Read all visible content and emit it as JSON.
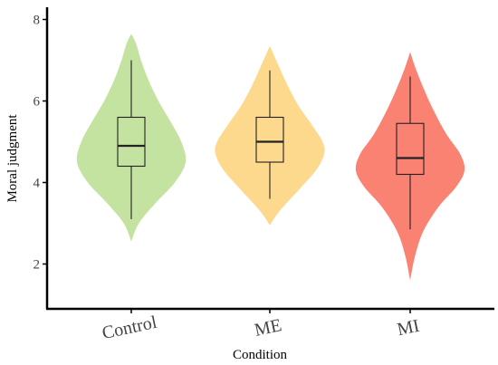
{
  "chart_data": {
    "type": "violin",
    "xlabel": "Condition",
    "ylabel": "Moral judgment",
    "categories": [
      "Control",
      "ME",
      "MI"
    ],
    "ylim": [
      0.9,
      8.3
    ],
    "yticks": [
      2,
      4,
      6,
      8
    ],
    "grid": false,
    "legend": "none",
    "colors": [
      "#c5e3a0",
      "#fdd98e",
      "#fa8273"
    ],
    "box_stroke": "#222222",
    "groups": [
      {
        "name": "Control",
        "min": 3.1,
        "q1": 4.4,
        "median": 4.9,
        "q3": 5.6,
        "max": 7.0,
        "density_y": [
          2.55,
          3.0,
          3.5,
          4.0,
          4.5,
          5.0,
          5.5,
          6.0,
          6.5,
          7.0,
          7.4,
          7.65
        ],
        "density_w": [
          0.0,
          0.14,
          0.45,
          0.8,
          1.0,
          0.92,
          0.72,
          0.5,
          0.32,
          0.18,
          0.09,
          0.0
        ]
      },
      {
        "name": "ME",
        "min": 3.6,
        "q1": 4.5,
        "median": 5.0,
        "q3": 5.6,
        "max": 6.75,
        "density_y": [
          2.95,
          3.3,
          3.8,
          4.3,
          4.7,
          5.0,
          5.4,
          5.9,
          6.4,
          6.9,
          7.35
        ],
        "density_w": [
          0.0,
          0.18,
          0.52,
          0.85,
          1.0,
          0.97,
          0.78,
          0.52,
          0.32,
          0.15,
          0.0
        ]
      },
      {
        "name": "MI",
        "min": 2.85,
        "q1": 4.2,
        "median": 4.6,
        "q3": 5.45,
        "max": 6.6,
        "density_y": [
          1.6,
          2.2,
          2.8,
          3.4,
          3.9,
          4.3,
          4.7,
          5.2,
          5.8,
          6.3,
          6.8,
          7.2
        ],
        "density_w": [
          0.0,
          0.09,
          0.24,
          0.52,
          0.85,
          1.0,
          0.92,
          0.66,
          0.42,
          0.25,
          0.1,
          0.0
        ]
      }
    ]
  }
}
